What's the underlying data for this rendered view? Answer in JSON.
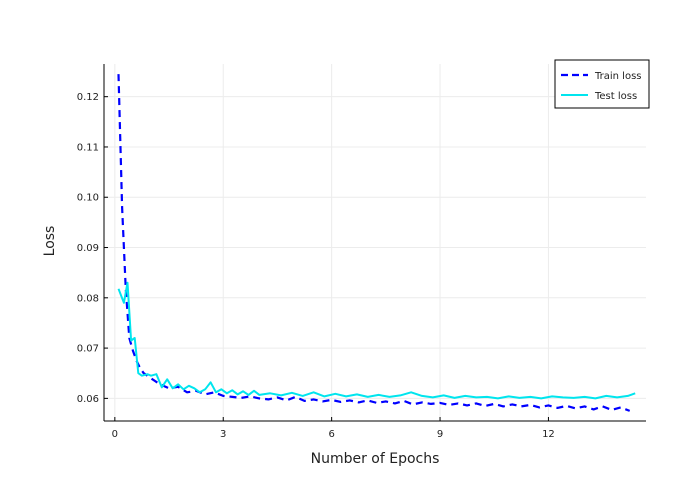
{
  "chart_data": {
    "type": "line",
    "xlabel": "Number of Epochs",
    "ylabel": "Loss",
    "xlim": [
      -0.3,
      14.7
    ],
    "ylim": [
      0.0555,
      0.1265
    ],
    "xticks": [
      0,
      3,
      6,
      9,
      12
    ],
    "yticks": [
      0.06,
      0.07,
      0.08,
      0.09,
      0.1,
      0.11,
      0.12
    ],
    "ytick_labels": [
      "0.06",
      "0.07",
      "0.08",
      "0.09",
      "0.10",
      "0.11",
      "0.12"
    ],
    "grid": true,
    "legend_position": "top-right",
    "series": [
      {
        "name": "Train loss",
        "color": "#0000ff",
        "dash": "dashed",
        "x": [
          0.1,
          0.2,
          0.3,
          0.4,
          0.5,
          0.6,
          0.7,
          0.8,
          0.9,
          1.0,
          1.25,
          1.5,
          1.75,
          2.0,
          2.25,
          2.5,
          2.75,
          3.0,
          3.25,
          3.5,
          3.75,
          4.0,
          4.25,
          4.5,
          4.75,
          5.0,
          5.25,
          5.5,
          5.75,
          6.0,
          6.25,
          6.5,
          6.75,
          7.0,
          7.25,
          7.5,
          7.75,
          8.0,
          8.25,
          8.5,
          8.75,
          9.0,
          9.25,
          9.5,
          9.75,
          10.0,
          10.25,
          10.5,
          10.75,
          11.0,
          11.25,
          11.5,
          11.75,
          12.0,
          12.25,
          12.5,
          12.75,
          13.0,
          13.25,
          13.5,
          13.75,
          14.0,
          14.25
        ],
        "values": [
          0.1245,
          0.098,
          0.082,
          0.072,
          0.0695,
          0.0675,
          0.066,
          0.065,
          0.0645,
          0.064,
          0.0628,
          0.062,
          0.0623,
          0.0612,
          0.0615,
          0.0608,
          0.0612,
          0.0605,
          0.0603,
          0.0601,
          0.0604,
          0.06,
          0.0598,
          0.0602,
          0.0596,
          0.0603,
          0.0595,
          0.0598,
          0.0594,
          0.0597,
          0.0593,
          0.0596,
          0.0592,
          0.0596,
          0.0591,
          0.0594,
          0.059,
          0.0595,
          0.0588,
          0.0592,
          0.0589,
          0.0591,
          0.0587,
          0.059,
          0.0586,
          0.059,
          0.0585,
          0.0589,
          0.0584,
          0.0588,
          0.0584,
          0.0587,
          0.0582,
          0.0586,
          0.0581,
          0.0585,
          0.058,
          0.0584,
          0.0578,
          0.0584,
          0.0577,
          0.0582,
          0.0575
        ]
      },
      {
        "name": "Test loss",
        "color": "#00e5ee",
        "dash": "solid",
        "x": [
          0.1,
          0.25,
          0.35,
          0.45,
          0.55,
          0.65,
          0.75,
          0.9,
          1.0,
          1.15,
          1.3,
          1.45,
          1.6,
          1.75,
          1.9,
          2.05,
          2.2,
          2.35,
          2.5,
          2.65,
          2.8,
          2.95,
          3.1,
          3.25,
          3.4,
          3.55,
          3.7,
          3.85,
          4.0,
          4.3,
          4.6,
          4.9,
          5.2,
          5.5,
          5.8,
          6.1,
          6.4,
          6.7,
          7.0,
          7.3,
          7.6,
          7.9,
          8.2,
          8.5,
          8.8,
          9.1,
          9.4,
          9.7,
          10.0,
          10.3,
          10.6,
          10.9,
          11.2,
          11.5,
          11.8,
          12.1,
          12.4,
          12.7,
          13.0,
          13.3,
          13.6,
          13.9,
          14.2,
          14.4
        ],
        "values": [
          0.0818,
          0.079,
          0.083,
          0.0715,
          0.072,
          0.065,
          0.0645,
          0.0648,
          0.0645,
          0.0648,
          0.0622,
          0.0638,
          0.062,
          0.0628,
          0.0618,
          0.0625,
          0.062,
          0.0612,
          0.0618,
          0.0632,
          0.0612,
          0.0618,
          0.061,
          0.0616,
          0.0608,
          0.0614,
          0.0607,
          0.0615,
          0.0607,
          0.061,
          0.0606,
          0.0611,
          0.0605,
          0.0612,
          0.0604,
          0.0609,
          0.0604,
          0.0608,
          0.0603,
          0.0607,
          0.0603,
          0.0606,
          0.0612,
          0.0605,
          0.0602,
          0.0606,
          0.0601,
          0.0605,
          0.0602,
          0.0603,
          0.06,
          0.0604,
          0.0601,
          0.0603,
          0.06,
          0.0604,
          0.0602,
          0.0601,
          0.0603,
          0.06,
          0.0605,
          0.0602,
          0.0605,
          0.061
        ]
      }
    ]
  }
}
